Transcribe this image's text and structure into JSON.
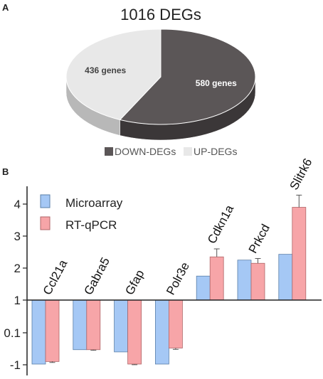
{
  "panel_a": {
    "letter": "A",
    "chart_data": {
      "type": "pie",
      "title": "1016 DEGs",
      "slices": [
        {
          "name": "DOWN-DEGs",
          "label": "580 genes",
          "value": 580,
          "color": "#5b5657"
        },
        {
          "name": "UP-DEGs",
          "label": "436 genes",
          "value": 436,
          "color": "#e8e8e8"
        }
      ],
      "legend_placement": "bottom"
    }
  },
  "panel_b": {
    "letter": "B",
    "chart_data": {
      "type": "bar",
      "categories": [
        "Ccl21a",
        "Gabra5",
        "Gfap",
        "Polr3e",
        "Cdkn1a",
        "Prkcd",
        "Slitrk6"
      ],
      "yticks": [
        "4",
        "3",
        "2",
        "1",
        "0.1",
        "-1"
      ],
      "ylim": [
        -1,
        4.5
      ],
      "series": [
        {
          "name": "Microarray",
          "color": "#a5c8f5",
          "stroke": "#5a7fa8",
          "values": [
            -1.0,
            -0.55,
            -0.62,
            -1.0,
            1.75,
            2.25,
            2.43
          ],
          "errors": [
            0,
            0,
            0,
            0,
            0,
            0,
            0
          ]
        },
        {
          "name": "RT-qPCR",
          "color": "#f7a5a8",
          "stroke": "#b06668",
          "values": [
            -0.92,
            -0.55,
            -1.0,
            -0.5,
            2.35,
            2.15,
            3.9
          ],
          "errors": [
            0.03,
            0.02,
            0.02,
            0.04,
            0.25,
            0.15,
            0.38
          ]
        }
      ],
      "legend_placement": "top-left",
      "grid": false
    }
  }
}
